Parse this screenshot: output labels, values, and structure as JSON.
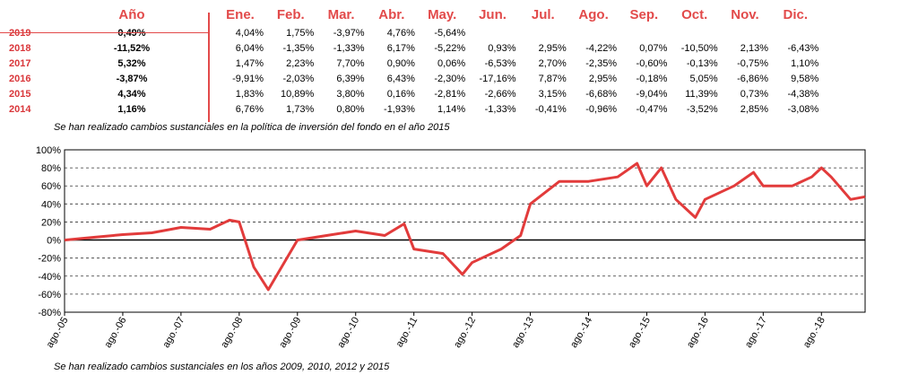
{
  "table": {
    "year_header": "Año",
    "month_headers": [
      "Ene.",
      "Feb.",
      "Mar.",
      "Abr.",
      "May.",
      "Jun.",
      "Jul.",
      "Ago.",
      "Sep.",
      "Oct.",
      "Nov.",
      "Dic."
    ],
    "rows": [
      {
        "year": "2019",
        "ytd": "0,49%",
        "months": [
          "4,04%",
          "1,75%",
          "-3,97%",
          "4,76%",
          "-5,64%",
          "",
          "",
          "",
          "",
          "",
          "",
          ""
        ]
      },
      {
        "year": "2018",
        "ytd": "-11,52%",
        "months": [
          "6,04%",
          "-1,35%",
          "-1,33%",
          "6,17%",
          "-5,22%",
          "0,93%",
          "2,95%",
          "-4,22%",
          "0,07%",
          "-10,50%",
          "2,13%",
          "-6,43%"
        ]
      },
      {
        "year": "2017",
        "ytd": "5,32%",
        "months": [
          "1,47%",
          "2,23%",
          "7,70%",
          "0,90%",
          "0,06%",
          "-6,53%",
          "2,70%",
          "-2,35%",
          "-0,60%",
          "-0,13%",
          "-0,75%",
          "1,10%"
        ]
      },
      {
        "year": "2016",
        "ytd": "-3,87%",
        "months": [
          "-9,91%",
          "-2,03%",
          "6,39%",
          "6,43%",
          "-2,30%",
          "-17,16%",
          "7,87%",
          "2,95%",
          "-0,18%",
          "5,05%",
          "-6,86%",
          "9,58%"
        ]
      },
      {
        "year": "2015",
        "ytd": "4,34%",
        "months": [
          "1,83%",
          "10,89%",
          "3,80%",
          "0,16%",
          "-2,81%",
          "-2,66%",
          "3,15%",
          "-6,68%",
          "-9,04%",
          "11,39%",
          "0,73%",
          "-4,38%"
        ]
      },
      {
        "year": "2014",
        "ytd": "1,16%",
        "months": [
          "6,76%",
          "1,73%",
          "0,80%",
          "-1,93%",
          "1,14%",
          "-1,33%",
          "-0,41%",
          "-0,96%",
          "-0,47%",
          "-3,52%",
          "2,85%",
          "-3,08%"
        ]
      }
    ]
  },
  "note_top": "Se han realizado cambios sustanciales en la política de inversión del fondo en el año 2015",
  "note_bottom": "Se han realizado cambios sustanciales en los años 2009, 2010, 2012 y 2015",
  "chart_data": {
    "type": "line",
    "series": [
      {
        "color": "#e23b3b",
        "x": [
          "ago.-05",
          "feb.-06",
          "ago.-06",
          "feb.-07",
          "ago.-07",
          "feb.-08",
          "jun.-08",
          "ago.-08",
          "nov.-08",
          "feb.-09",
          "ago.-09",
          "feb.-10",
          "ago.-10",
          "feb.-11",
          "jun.-11",
          "ago.-11",
          "feb.-12",
          "jun.-12",
          "ago.-12",
          "feb.-13",
          "jun.-13",
          "ago.-13",
          "feb.-14",
          "ago.-14",
          "feb.-15",
          "jun.-15",
          "ago.-15",
          "nov.-15",
          "feb.-16",
          "jun.-16",
          "ago.-16",
          "feb.-17",
          "jun.-17",
          "ago.-17",
          "feb.-18",
          "jun.-18",
          "ago.-18",
          "oct.-18",
          "feb.-19",
          "may.-19"
        ],
        "y": [
          0,
          3,
          6,
          8,
          14,
          12,
          22,
          20,
          -30,
          -55,
          0,
          5,
          10,
          5,
          18,
          -10,
          -15,
          -38,
          -25,
          -10,
          5,
          40,
          65,
          65,
          70,
          85,
          60,
          80,
          45,
          25,
          45,
          60,
          75,
          60,
          60,
          70,
          80,
          70,
          45,
          48
        ]
      }
    ],
    "x_tick_labels": [
      "ago.-05",
      "ago.-06",
      "ago.-07",
      "ago.-08",
      "ago.-09",
      "ago.-10",
      "ago.-11",
      "ago.-12",
      "ago.-13",
      "ago.-14",
      "ago.-15",
      "ago.-16",
      "ago.-17",
      "ago.-18"
    ],
    "y_tick_labels": [
      "100%",
      "80%",
      "60%",
      "40%",
      "20%",
      "0%",
      "-20%",
      "-40%",
      "-60%",
      "-80%"
    ],
    "ylim": [
      -80,
      100
    ],
    "y_grid": "dashed",
    "legend": "none"
  }
}
